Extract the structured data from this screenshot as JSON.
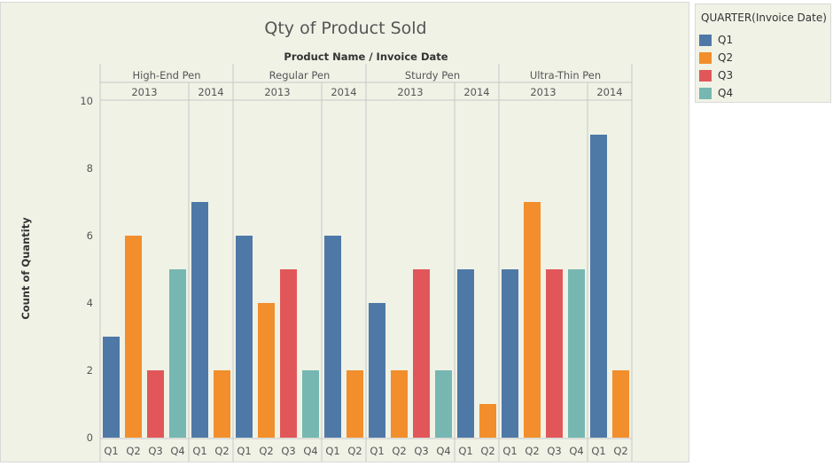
{
  "chart_data": {
    "type": "bar",
    "title": "Qty of Product Sold",
    "header": "Product Name  /  Invoice Date",
    "ylabel": "Count of Quantity",
    "ylim": [
      0,
      10
    ],
    "yticks": [
      0,
      2,
      4,
      6,
      8,
      10
    ],
    "legend_title": "QUARTER(Invoice Date)",
    "series": [
      {
        "name": "Q1",
        "color": "#4e79a7"
      },
      {
        "name": "Q2",
        "color": "#f28e2b"
      },
      {
        "name": "Q3",
        "color": "#e15759"
      },
      {
        "name": "Q4",
        "color": "#76b7b2"
      }
    ],
    "groups": [
      {
        "product": "High-End Pen",
        "years": [
          {
            "year": "2013",
            "bars": [
              {
                "q": "Q1",
                "v": 3
              },
              {
                "q": "Q2",
                "v": 6
              },
              {
                "q": "Q3",
                "v": 2
              },
              {
                "q": "Q4",
                "v": 5
              }
            ]
          },
          {
            "year": "2014",
            "bars": [
              {
                "q": "Q1",
                "v": 7
              },
              {
                "q": "Q2",
                "v": 2
              }
            ]
          }
        ]
      },
      {
        "product": "Regular Pen",
        "years": [
          {
            "year": "2013",
            "bars": [
              {
                "q": "Q1",
                "v": 6
              },
              {
                "q": "Q2",
                "v": 4
              },
              {
                "q": "Q3",
                "v": 5
              },
              {
                "q": "Q4",
                "v": 2
              }
            ]
          },
          {
            "year": "2014",
            "bars": [
              {
                "q": "Q1",
                "v": 6
              },
              {
                "q": "Q2",
                "v": 2
              }
            ]
          }
        ]
      },
      {
        "product": "Sturdy Pen",
        "years": [
          {
            "year": "2013",
            "bars": [
              {
                "q": "Q1",
                "v": 4
              },
              {
                "q": "Q2",
                "v": 2
              },
              {
                "q": "Q3",
                "v": 5
              },
              {
                "q": "Q4",
                "v": 2
              }
            ]
          },
          {
            "year": "2014",
            "bars": [
              {
                "q": "Q1",
                "v": 5
              },
              {
                "q": "Q2",
                "v": 1
              }
            ]
          }
        ]
      },
      {
        "product": "Ultra-Thin Pen",
        "years": [
          {
            "year": "2013",
            "bars": [
              {
                "q": "Q1",
                "v": 5
              },
              {
                "q": "Q2",
                "v": 7
              },
              {
                "q": "Q3",
                "v": 5
              },
              {
                "q": "Q4",
                "v": 5
              }
            ]
          },
          {
            "year": "2014",
            "bars": [
              {
                "q": "Q1",
                "v": 9
              },
              {
                "q": "Q2",
                "v": 2
              }
            ]
          }
        ]
      }
    ]
  }
}
